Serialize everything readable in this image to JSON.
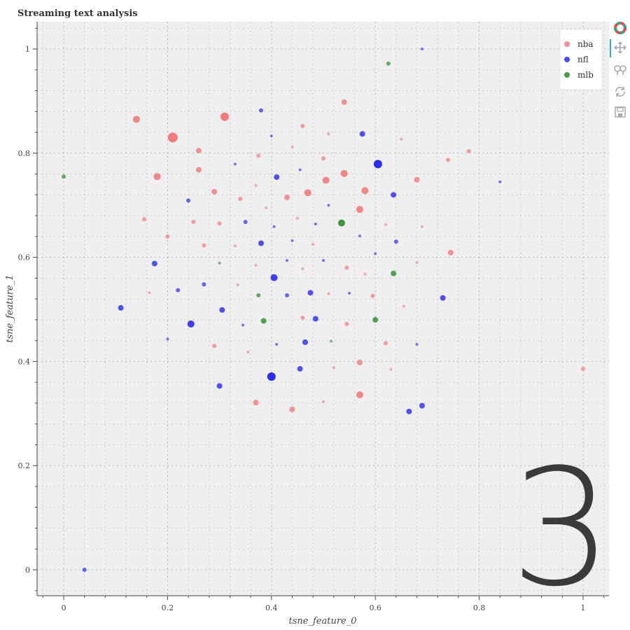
{
  "toolbar": {
    "tools": [
      {
        "name": "bokeh-logo-icon",
        "active": false
      },
      {
        "name": "pan-icon",
        "active": true
      },
      {
        "name": "wheel-zoom-icon",
        "active": false
      },
      {
        "name": "reset-icon",
        "active": false
      },
      {
        "name": "save-icon",
        "active": false
      }
    ]
  },
  "colors": {
    "background": "#efefef",
    "grid": "#888888",
    "axis": "#444444",
    "nba": "#f07b7b",
    "nfl": "#2b2bf0",
    "mlb": "#2e8b2e",
    "counter": "#3a3a3a",
    "active_tool": "#26aae1"
  },
  "overlay_number": "3",
  "chart_data": {
    "type": "scatter",
    "title": "Streaming text analysis",
    "xlabel": "tsne_feature_0",
    "ylabel": "tsne_feature_1",
    "xlim": [
      -0.05,
      1.05
    ],
    "ylim": [
      -0.05,
      1.05
    ],
    "xticks": [
      0,
      0.2,
      0.4,
      0.6,
      0.8,
      1
    ],
    "yticks": [
      0,
      0.2,
      0.4,
      0.6,
      0.8,
      1
    ],
    "xtick_labels": [
      "0",
      "0.2",
      "0.4",
      "0.6",
      "0.8",
      "1"
    ],
    "ytick_labels": [
      "0",
      "0.2",
      "0.4",
      "0.6",
      "0.8",
      "1"
    ],
    "grid": true,
    "legend_position": "top-right",
    "series": [
      {
        "name": "nba",
        "color": "#f07b7b",
        "points": [
          {
            "x": 0.14,
            "y": 0.865,
            "s": 5
          },
          {
            "x": 0.21,
            "y": 0.83,
            "s": 7
          },
          {
            "x": 0.31,
            "y": 0.87,
            "s": 6
          },
          {
            "x": 0.26,
            "y": 0.805,
            "s": 4
          },
          {
            "x": 0.18,
            "y": 0.755,
            "s": 5
          },
          {
            "x": 0.26,
            "y": 0.768,
            "s": 4
          },
          {
            "x": 0.29,
            "y": 0.726,
            "s": 4
          },
          {
            "x": 0.34,
            "y": 0.712,
            "s": 3
          },
          {
            "x": 0.155,
            "y": 0.673,
            "s": 3
          },
          {
            "x": 0.2,
            "y": 0.64,
            "s": 3
          },
          {
            "x": 0.25,
            "y": 0.668,
            "s": 3
          },
          {
            "x": 0.3,
            "y": 0.665,
            "s": 3
          },
          {
            "x": 0.27,
            "y": 0.623,
            "s": 3
          },
          {
            "x": 0.33,
            "y": 0.622,
            "s": 2
          },
          {
            "x": 0.375,
            "y": 0.795,
            "s": 3
          },
          {
            "x": 0.46,
            "y": 0.852,
            "s": 3
          },
          {
            "x": 0.44,
            "y": 0.812,
            "s": 2
          },
          {
            "x": 0.51,
            "y": 0.837,
            "s": 2
          },
          {
            "x": 0.54,
            "y": 0.898,
            "s": 4
          },
          {
            "x": 0.5,
            "y": 0.79,
            "s": 3
          },
          {
            "x": 0.37,
            "y": 0.738,
            "s": 2
          },
          {
            "x": 0.43,
            "y": 0.715,
            "s": 4
          },
          {
            "x": 0.47,
            "y": 0.724,
            "s": 5
          },
          {
            "x": 0.505,
            "y": 0.748,
            "s": 5
          },
          {
            "x": 0.54,
            "y": 0.761,
            "s": 5
          },
          {
            "x": 0.58,
            "y": 0.728,
            "s": 5
          },
          {
            "x": 0.57,
            "y": 0.692,
            "s": 5
          },
          {
            "x": 0.45,
            "y": 0.675,
            "s": 2
          },
          {
            "x": 0.39,
            "y": 0.695,
            "s": 2
          },
          {
            "x": 0.65,
            "y": 0.827,
            "s": 2
          },
          {
            "x": 0.68,
            "y": 0.749,
            "s": 4
          },
          {
            "x": 0.74,
            "y": 0.787,
            "s": 3
          },
          {
            "x": 0.78,
            "y": 0.804,
            "s": 3
          },
          {
            "x": 0.62,
            "y": 0.663,
            "s": 2
          },
          {
            "x": 0.69,
            "y": 0.659,
            "s": 2
          },
          {
            "x": 0.745,
            "y": 0.609,
            "s": 4
          },
          {
            "x": 0.68,
            "y": 0.59,
            "s": 2
          },
          {
            "x": 0.37,
            "y": 0.585,
            "s": 2
          },
          {
            "x": 0.46,
            "y": 0.578,
            "s": 2
          },
          {
            "x": 0.545,
            "y": 0.58,
            "s": 3
          },
          {
            "x": 0.58,
            "y": 0.568,
            "s": 2
          },
          {
            "x": 0.48,
            "y": 0.625,
            "s": 2
          },
          {
            "x": 0.165,
            "y": 0.532,
            "s": 2
          },
          {
            "x": 0.335,
            "y": 0.547,
            "s": 2
          },
          {
            "x": 0.51,
            "y": 0.53,
            "s": 2
          },
          {
            "x": 0.595,
            "y": 0.526,
            "s": 3
          },
          {
            "x": 0.655,
            "y": 0.506,
            "s": 2
          },
          {
            "x": 0.46,
            "y": 0.484,
            "s": 3
          },
          {
            "x": 0.545,
            "y": 0.472,
            "s": 3
          },
          {
            "x": 0.29,
            "y": 0.43,
            "s": 3
          },
          {
            "x": 0.355,
            "y": 0.418,
            "s": 2
          },
          {
            "x": 0.62,
            "y": 0.435,
            "s": 3
          },
          {
            "x": 0.57,
            "y": 0.398,
            "s": 4
          },
          {
            "x": 0.52,
            "y": 0.388,
            "s": 2
          },
          {
            "x": 0.63,
            "y": 0.385,
            "s": 2
          },
          {
            "x": 1.0,
            "y": 0.386,
            "s": 3
          },
          {
            "x": 0.57,
            "y": 0.336,
            "s": 5
          },
          {
            "x": 0.37,
            "y": 0.321,
            "s": 4
          },
          {
            "x": 0.44,
            "y": 0.308,
            "s": 4
          },
          {
            "x": 0.5,
            "y": 0.323,
            "s": 2
          }
        ]
      },
      {
        "name": "nfl",
        "color": "#2b2bf0",
        "points": [
          {
            "x": 0.38,
            "y": 0.882,
            "s": 3
          },
          {
            "x": 0.4,
            "y": 0.833,
            "s": 2
          },
          {
            "x": 0.575,
            "y": 0.837,
            "s": 4
          },
          {
            "x": 0.605,
            "y": 0.779,
            "s": 6
          },
          {
            "x": 0.33,
            "y": 0.779,
            "s": 2
          },
          {
            "x": 0.41,
            "y": 0.754,
            "s": 4
          },
          {
            "x": 0.455,
            "y": 0.768,
            "s": 2
          },
          {
            "x": 0.635,
            "y": 0.72,
            "s": 4
          },
          {
            "x": 0.69,
            "y": 1.0,
            "s": 2
          },
          {
            "x": 0.84,
            "y": 0.745,
            "s": 2
          },
          {
            "x": 0.24,
            "y": 0.709,
            "s": 3
          },
          {
            "x": 0.51,
            "y": 0.7,
            "s": 2
          },
          {
            "x": 0.35,
            "y": 0.668,
            "s": 3
          },
          {
            "x": 0.405,
            "y": 0.659,
            "s": 2
          },
          {
            "x": 0.485,
            "y": 0.664,
            "s": 2
          },
          {
            "x": 0.57,
            "y": 0.641,
            "s": 2
          },
          {
            "x": 0.64,
            "y": 0.63,
            "s": 3
          },
          {
            "x": 0.38,
            "y": 0.627,
            "s": 4
          },
          {
            "x": 0.44,
            "y": 0.632,
            "s": 2
          },
          {
            "x": 0.175,
            "y": 0.588,
            "s": 4
          },
          {
            "x": 0.43,
            "y": 0.594,
            "s": 2
          },
          {
            "x": 0.5,
            "y": 0.594,
            "s": 2
          },
          {
            "x": 0.6,
            "y": 0.607,
            "s": 2
          },
          {
            "x": 0.405,
            "y": 0.561,
            "s": 5
          },
          {
            "x": 0.27,
            "y": 0.548,
            "s": 3
          },
          {
            "x": 0.22,
            "y": 0.537,
            "s": 3
          },
          {
            "x": 0.475,
            "y": 0.532,
            "s": 4
          },
          {
            "x": 0.55,
            "y": 0.531,
            "s": 2
          },
          {
            "x": 0.43,
            "y": 0.527,
            "s": 3
          },
          {
            "x": 0.11,
            "y": 0.503,
            "s": 4
          },
          {
            "x": 0.305,
            "y": 0.499,
            "s": 4
          },
          {
            "x": 0.73,
            "y": 0.522,
            "s": 4
          },
          {
            "x": 0.485,
            "y": 0.482,
            "s": 4
          },
          {
            "x": 0.245,
            "y": 0.472,
            "s": 5
          },
          {
            "x": 0.345,
            "y": 0.47,
            "s": 2
          },
          {
            "x": 0.2,
            "y": 0.443,
            "s": 2
          },
          {
            "x": 0.41,
            "y": 0.433,
            "s": 2
          },
          {
            "x": 0.465,
            "y": 0.437,
            "s": 4
          },
          {
            "x": 0.68,
            "y": 0.433,
            "s": 2
          },
          {
            "x": 0.455,
            "y": 0.386,
            "s": 4
          },
          {
            "x": 0.4,
            "y": 0.371,
            "s": 6
          },
          {
            "x": 0.3,
            "y": 0.353,
            "s": 4
          },
          {
            "x": 0.69,
            "y": 0.315,
            "s": 4
          },
          {
            "x": 0.665,
            "y": 0.304,
            "s": 4
          },
          {
            "x": 0.04,
            "y": 0.0,
            "s": 3
          }
        ]
      },
      {
        "name": "mlb",
        "color": "#2e8b2e",
        "points": [
          {
            "x": 0.625,
            "y": 0.972,
            "s": 3
          },
          {
            "x": 0.0,
            "y": 0.755,
            "s": 3
          },
          {
            "x": 0.535,
            "y": 0.666,
            "s": 5
          },
          {
            "x": 0.3,
            "y": 0.589,
            "s": 2
          },
          {
            "x": 0.635,
            "y": 0.569,
            "s": 4
          },
          {
            "x": 0.375,
            "y": 0.527,
            "s": 3
          },
          {
            "x": 0.385,
            "y": 0.478,
            "s": 4
          },
          {
            "x": 0.6,
            "y": 0.48,
            "s": 4
          },
          {
            "x": 0.515,
            "y": 0.439,
            "s": 2
          }
        ]
      }
    ]
  }
}
